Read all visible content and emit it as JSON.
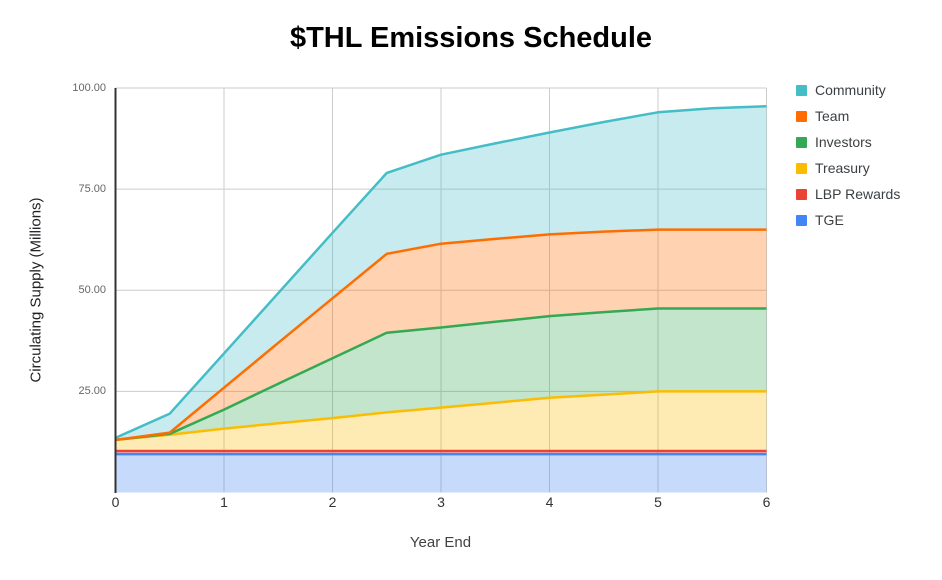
{
  "title": "$THL Emissions Schedule",
  "y_axis": {
    "title": "Circulating Supply (Millions)",
    "tick_labels": [
      "100.00",
      "75.00",
      "50.00",
      "25.00"
    ],
    "tick_values": [
      100,
      75,
      50,
      25
    ],
    "min": 0,
    "max": 100
  },
  "x_axis": {
    "title": "Year End",
    "tick_labels": [
      "0",
      "1",
      "2",
      "3",
      "4",
      "5",
      "6"
    ],
    "tick_values": [
      0,
      1,
      2,
      3,
      4,
      5,
      6
    ]
  },
  "legend": [
    {
      "label": "Community",
      "color": "#45BDC6"
    },
    {
      "label": "Team",
      "color": "#FF6D01"
    },
    {
      "label": "Investors",
      "color": "#34A853"
    },
    {
      "label": "Treasury",
      "color": "#FBBC04"
    },
    {
      "label": "LBP Rewards",
      "color": "#EA4335"
    },
    {
      "label": "TGE",
      "color": "#4285F4"
    }
  ],
  "chart_data": {
    "type": "area",
    "stacked": true,
    "title": "$THL Emissions Schedule",
    "xlabel": "Year End",
    "ylabel": "Circulating Supply (Millions)",
    "xlim": [
      0,
      6
    ],
    "ylim": [
      0,
      100
    ],
    "grid": true,
    "legend_position": "right",
    "x": [
      0,
      0.5,
      1,
      1.5,
      2,
      2.5,
      3,
      3.5,
      4,
      4.5,
      5,
      5.5,
      6
    ],
    "series": [
      {
        "name": "TGE",
        "color": "#4285F4",
        "values": [
          9.5,
          9.5,
          9.5,
          9.5,
          9.5,
          9.5,
          9.5,
          9.5,
          9.5,
          9.5,
          9.5,
          9.5,
          9.5
        ]
      },
      {
        "name": "LBP Rewards",
        "color": "#EA4335",
        "values": [
          0.75,
          0.75,
          0.75,
          0.75,
          0.75,
          0.75,
          0.75,
          0.75,
          0.75,
          0.75,
          0.75,
          0.75,
          0.75
        ]
      },
      {
        "name": "Treasury",
        "color": "#FBBC04",
        "values": [
          2.75,
          4.05,
          5.55,
          6.85,
          8.15,
          9.55,
          10.75,
          11.95,
          13.15,
          13.95,
          14.75,
          14.75,
          14.75
        ]
      },
      {
        "name": "Investors",
        "color": "#34A853",
        "values": [
          0,
          0.2,
          4.7,
          9.8,
          14.8,
          19.7,
          19.8,
          20.0,
          20.2,
          20.4,
          20.5,
          20.5,
          20.5
        ]
      },
      {
        "name": "Team",
        "color": "#FF6D01",
        "values": [
          0,
          0.3,
          5.4,
          10.1,
          14.8,
          19.5,
          20.7,
          20.5,
          20.2,
          19.9,
          19.5,
          19.5,
          19.5
        ]
      },
      {
        "name": "Community",
        "color": "#45BDC6",
        "values": [
          0.5,
          4.7,
          8.5,
          12.3,
          16.2,
          20.0,
          22.0,
          23.6,
          25.2,
          27.1,
          29.0,
          30.0,
          30.5
        ]
      }
    ]
  }
}
